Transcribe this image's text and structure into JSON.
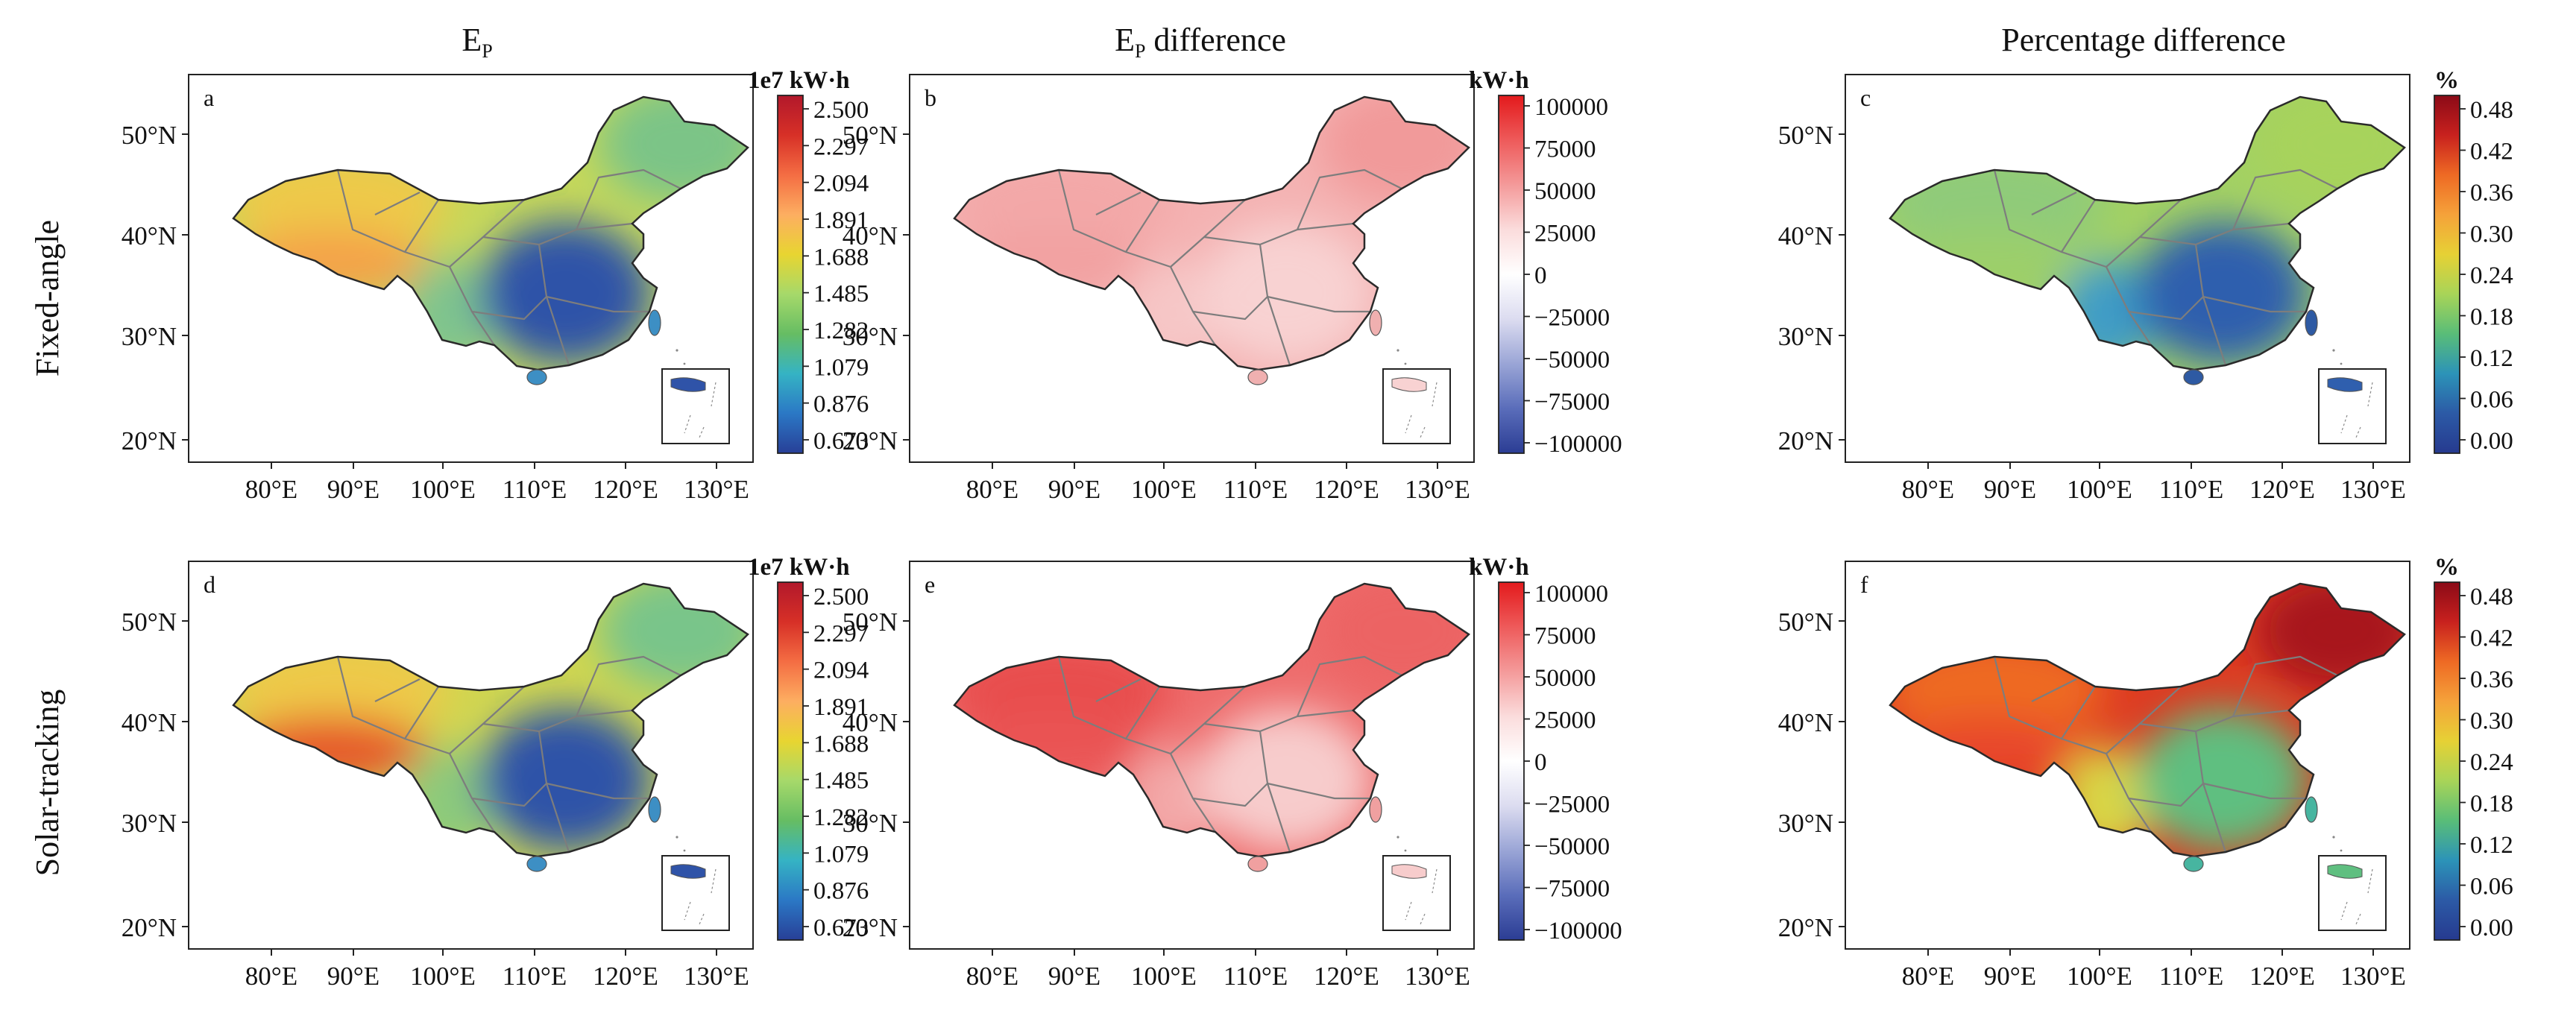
{
  "columns": [
    {
      "title": "E",
      "title_sub": "P"
    },
    {
      "title": "E",
      "title_sub": "P",
      "title_suffix": " difference"
    },
    {
      "title": "Percentage  difference"
    }
  ],
  "rows": [
    {
      "label": "Fixed-angle"
    },
    {
      "label": "Solar-tracking"
    }
  ],
  "axes": {
    "lat_ticks": [
      "20°N",
      "30°N",
      "40°N",
      "50°N"
    ],
    "lon_ticks": [
      "80°E",
      "90°E",
      "100°E",
      "110°E",
      "120°E",
      "130°E"
    ]
  },
  "colorbars": {
    "energy": {
      "unit": "1e7 kW·h",
      "ticks": [
        "2.500",
        "2.297",
        "2.094",
        "1.891",
        "1.688",
        "1.485",
        "1.282",
        "1.079",
        "0.876",
        "0.673"
      ],
      "colors": [
        "#b2182b",
        "#d73027",
        "#f46d43",
        "#fdae61",
        "#e8d531",
        "#a6d96a",
        "#66bd63",
        "#35b3c4",
        "#2b78c5",
        "#283f97"
      ]
    },
    "diff": {
      "unit": "kW·h",
      "ticks": [
        "100000",
        "75000",
        "50000",
        "25000",
        "0",
        "−25000",
        "−50000",
        "−75000",
        "−100000"
      ],
      "colors": [
        "#e31a1c",
        "#ee5a5a",
        "#f49a9a",
        "#fbdcdc",
        "#ffffff",
        "#dcdcf0",
        "#9aa5d6",
        "#5a6dba",
        "#2b3d94"
      ]
    },
    "pct": {
      "unit": "%",
      "ticks": [
        "0.48",
        "0.42",
        "0.36",
        "0.30",
        "0.24",
        "0.18",
        "0.12",
        "0.06",
        "0.00"
      ],
      "colors": [
        "#8b0a17",
        "#c8211e",
        "#ee6a24",
        "#f5a23a",
        "#e6d135",
        "#a8d458",
        "#59bd78",
        "#2c93b8",
        "#2c5aa6",
        "#263a8f"
      ]
    }
  },
  "panels": [
    {
      "letter": "a",
      "variable": "Ep (1e7 kW·h)",
      "colorbar": "energy",
      "west": "#eec94a",
      "tibet": "#f4a24a",
      "northeast": "#7cc487",
      "north": "#c5d85a",
      "southeast": "#2f53a8",
      "southwest": "#7fc48e",
      "hainan": "#3d8fc4"
    },
    {
      "letter": "b",
      "variable": "Ep difference (kW·h)",
      "colorbar": "diff",
      "west": "#f3a8a8",
      "tibet": "#f2a1a1",
      "northeast": "#f19a9a",
      "north": "#f4b2b2",
      "southeast": "#f8d2d2",
      "southwest": "#f6c6c6",
      "hainan": "#f0b0b0"
    },
    {
      "letter": "c",
      "variable": "Percentage difference (%)",
      "colorbar": "pct",
      "west": "#8fcb7a",
      "tibet": "#9ccf6a",
      "northeast": "#a7d35c",
      "north": "#a3d163",
      "southeast": "#2f5fae",
      "southwest": "#3f9dc6",
      "hainan": "#2e5aa3"
    },
    {
      "letter": "d",
      "variable": "Ep (1e7 kW·h)",
      "colorbar": "energy",
      "west": "#eec94a",
      "tibet": "#e6562c",
      "northeast": "#79c58a",
      "north": "#cfd650",
      "southeast": "#2f53a8",
      "southwest": "#8cca7c",
      "hainan": "#3d8fc4"
    },
    {
      "letter": "e",
      "variable": "Ep difference (kW·h)",
      "colorbar": "diff",
      "west": "#e84e4e",
      "tibet": "#ea5555",
      "northeast": "#ec6464",
      "north": "#ee6c6c",
      "southeast": "#f7cccc",
      "southwest": "#f3a7a7",
      "hainan": "#f0a0a0"
    },
    {
      "letter": "f",
      "variable": "Percentage difference (%)",
      "colorbar": "pct",
      "west": "#ee6a24",
      "tibet": "#e8462a",
      "northeast": "#a8151f",
      "north": "#dd3b22",
      "southeast": "#5fbf80",
      "southwest": "#d9d545",
      "hainan": "#47b5a0"
    }
  ]
}
